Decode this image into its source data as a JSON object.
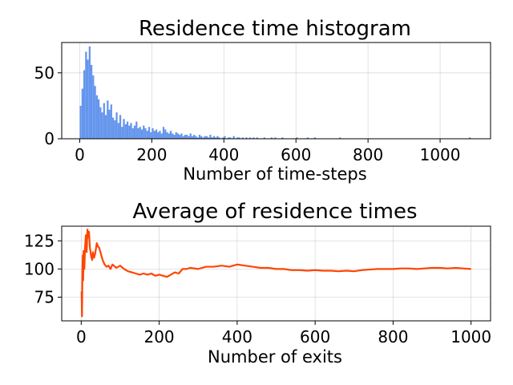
{
  "chart_data": [
    {
      "type": "bar",
      "title": "Residence time histogram",
      "xlabel": "Number of time-steps",
      "ylabel": "",
      "xlim": [
        -50,
        1140
      ],
      "ylim": [
        0,
        73
      ],
      "xticks": [
        "0",
        "200",
        "400",
        "600",
        "800",
        "1000"
      ],
      "xtick_values": [
        0,
        200,
        400,
        600,
        800,
        1000
      ],
      "yticks": [
        "0",
        "50"
      ],
      "ytick_values": [
        0,
        50
      ],
      "grid": true,
      "bin_width": 5,
      "color": "#6495ed",
      "bins": [
        [
          0,
          25
        ],
        [
          5,
          38
        ],
        [
          10,
          52
        ],
        [
          15,
          66
        ],
        [
          20,
          60
        ],
        [
          25,
          70
        ],
        [
          30,
          56
        ],
        [
          35,
          48
        ],
        [
          40,
          40
        ],
        [
          45,
          33
        ],
        [
          50,
          30
        ],
        [
          55,
          24
        ],
        [
          60,
          20
        ],
        [
          65,
          27
        ],
        [
          70,
          18
        ],
        [
          75,
          29
        ],
        [
          80,
          22
        ],
        [
          85,
          26
        ],
        [
          90,
          16
        ],
        [
          95,
          14
        ],
        [
          100,
          20
        ],
        [
          105,
          12
        ],
        [
          110,
          18
        ],
        [
          115,
          9
        ],
        [
          120,
          15
        ],
        [
          125,
          11
        ],
        [
          130,
          13
        ],
        [
          135,
          10
        ],
        [
          140,
          12
        ],
        [
          145,
          8
        ],
        [
          150,
          10
        ],
        [
          155,
          13
        ],
        [
          160,
          8
        ],
        [
          165,
          9
        ],
        [
          170,
          7
        ],
        [
          175,
          10
        ],
        [
          180,
          8
        ],
        [
          185,
          6
        ],
        [
          190,
          9
        ],
        [
          195,
          5
        ],
        [
          200,
          8
        ],
        [
          205,
          6
        ],
        [
          210,
          7
        ],
        [
          215,
          5
        ],
        [
          220,
          6
        ],
        [
          225,
          4
        ],
        [
          230,
          9
        ],
        [
          235,
          7
        ],
        [
          240,
          5
        ],
        [
          245,
          4
        ],
        [
          250,
          6
        ],
        [
          255,
          4
        ],
        [
          260,
          3
        ],
        [
          265,
          5
        ],
        [
          270,
          4
        ],
        [
          275,
          3
        ],
        [
          280,
          4
        ],
        [
          285,
          2
        ],
        [
          290,
          3
        ],
        [
          295,
          3
        ],
        [
          300,
          2
        ],
        [
          305,
          4
        ],
        [
          310,
          2
        ],
        [
          315,
          3
        ],
        [
          320,
          2
        ],
        [
          325,
          1
        ],
        [
          330,
          3
        ],
        [
          335,
          2
        ],
        [
          340,
          1
        ],
        [
          345,
          2
        ],
        [
          350,
          2
        ],
        [
          355,
          1
        ],
        [
          360,
          3
        ],
        [
          365,
          1
        ],
        [
          370,
          2
        ],
        [
          375,
          1
        ],
        [
          380,
          2
        ],
        [
          385,
          1
        ],
        [
          395,
          1
        ],
        [
          400,
          2
        ],
        [
          410,
          1
        ],
        [
          415,
          1
        ],
        [
          425,
          2
        ],
        [
          435,
          1
        ],
        [
          440,
          1
        ],
        [
          450,
          1
        ],
        [
          460,
          1
        ],
        [
          470,
          1
        ],
        [
          480,
          1
        ],
        [
          490,
          1
        ],
        [
          510,
          1
        ],
        [
          530,
          1
        ],
        [
          540,
          1
        ],
        [
          560,
          1
        ],
        [
          600,
          1
        ],
        [
          630,
          1
        ],
        [
          650,
          1
        ],
        [
          720,
          1
        ],
        [
          1080,
          1
        ]
      ]
    },
    {
      "type": "line",
      "title": "Average of residence times",
      "xlabel": "Number of exits",
      "ylabel": "",
      "xlim": [
        -50,
        1050
      ],
      "ylim": [
        54,
        138
      ],
      "xticks": [
        "0",
        "200",
        "400",
        "600",
        "800",
        "1000"
      ],
      "xtick_values": [
        0,
        200,
        400,
        600,
        800,
        1000
      ],
      "yticks": [
        "75",
        "100",
        "125"
      ],
      "ytick_values": [
        75,
        100,
        125
      ],
      "grid": true,
      "color": "#ff4500",
      "x": [
        1,
        2,
        3,
        4,
        5,
        6,
        7,
        8,
        10,
        12,
        14,
        16,
        18,
        20,
        22,
        25,
        28,
        30,
        33,
        36,
        40,
        43,
        46,
        50,
        55,
        60,
        65,
        70,
        75,
        80,
        90,
        100,
        110,
        120,
        130,
        140,
        150,
        160,
        170,
        180,
        190,
        200,
        210,
        220,
        230,
        240,
        250,
        260,
        270,
        280,
        300,
        320,
        340,
        360,
        380,
        400,
        420,
        440,
        460,
        480,
        500,
        520,
        540,
        560,
        580,
        600,
        620,
        640,
        660,
        680,
        700,
        720,
        740,
        760,
        780,
        800,
        820,
        840,
        860,
        880,
        900,
        920,
        940,
        960,
        980,
        1000
      ],
      "y": [
        80,
        58,
        95,
        112,
        90,
        116,
        108,
        100,
        120,
        130,
        115,
        135,
        128,
        133,
        120,
        112,
        108,
        115,
        110,
        114,
        123,
        120,
        119,
        114,
        108,
        104,
        102,
        103,
        100,
        104,
        101,
        103,
        100,
        98,
        97,
        96,
        95,
        96,
        95,
        96,
        94,
        95,
        94,
        93,
        95,
        97,
        96,
        100,
        100,
        101,
        100,
        102,
        102,
        103,
        102,
        104,
        103,
        102,
        101,
        101,
        100,
        100,
        99,
        99,
        98.5,
        99,
        98.5,
        98.5,
        98,
        98.5,
        98,
        99,
        99.5,
        100,
        100,
        100,
        100.5,
        100.5,
        100,
        100.5,
        101,
        101,
        100.5,
        101,
        100.5,
        100
      ]
    }
  ]
}
